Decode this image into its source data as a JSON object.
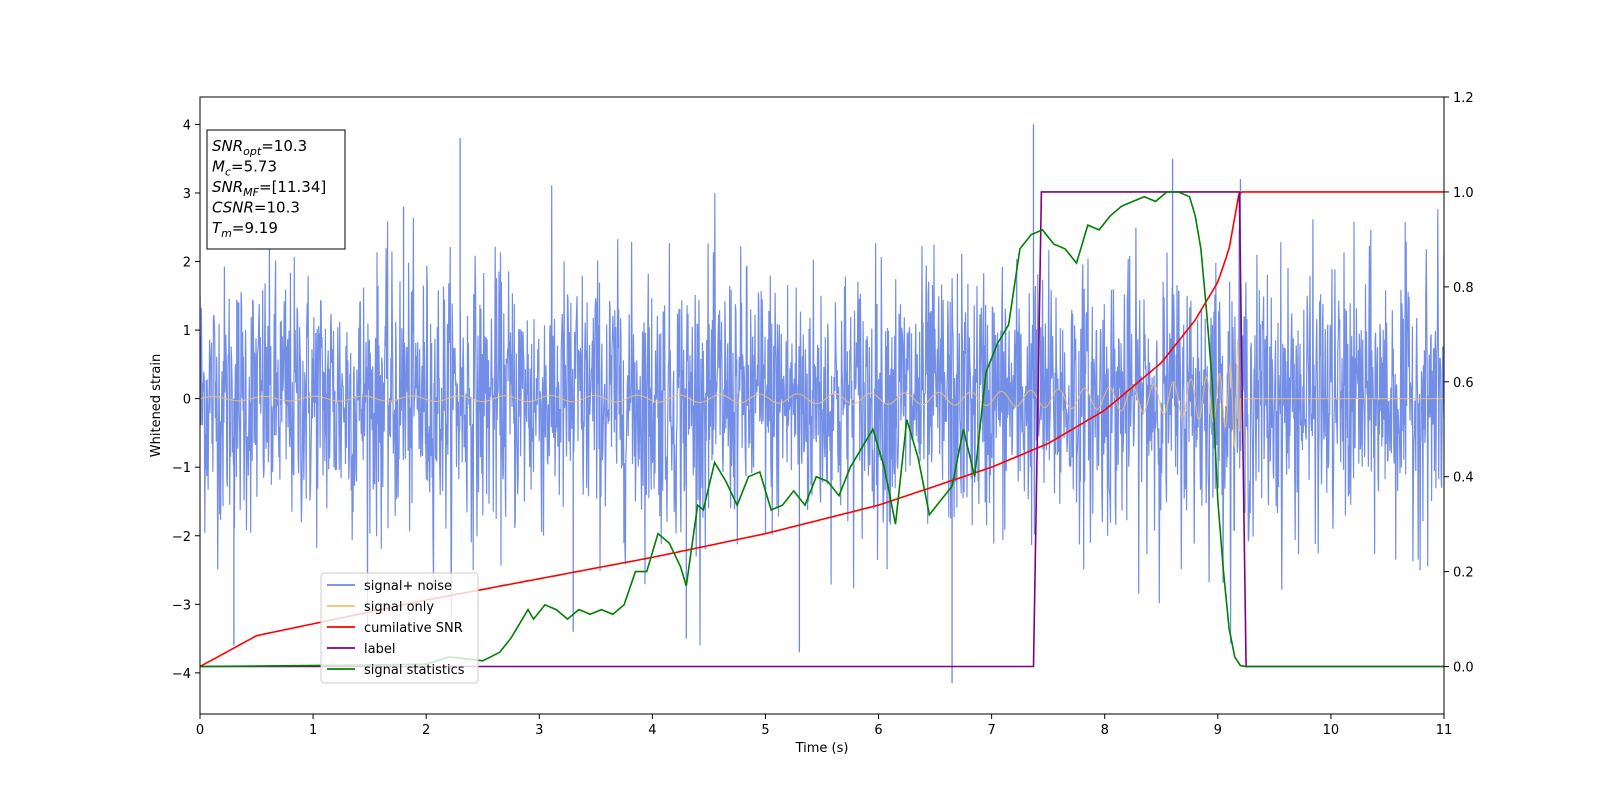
{
  "chart_data": {
    "type": "line",
    "xlabel": "Time (s)",
    "ylabel": "Whitened strain",
    "xlim": [
      0,
      11
    ],
    "ylim": [
      -4.6,
      4.4
    ],
    "y2lim": [
      -0.1,
      1.2
    ],
    "x_ticks": [
      "0",
      "1",
      "2",
      "3",
      "4",
      "5",
      "6",
      "7",
      "8",
      "9",
      "10",
      "11"
    ],
    "y_ticks": [
      "4",
      "3",
      "2",
      "1",
      "0",
      "−1",
      "−2",
      "−3",
      "−4"
    ],
    "y2_ticks": [
      "1.2",
      "1.0",
      "0.8",
      "0.6",
      "0.4",
      "0.2",
      "0.0"
    ],
    "grid": false,
    "legend_position": "lower-left",
    "annotation": [
      {
        "sym": "SNR",
        "sub": "opt",
        "val": "=10.3"
      },
      {
        "sym": "M",
        "sub": "c",
        "val": "=5.73"
      },
      {
        "sym": "SNR",
        "sub": "MF",
        "val": "=[11.34]"
      },
      {
        "sym": "CSNR",
        "sub": "",
        "val": "=10.3"
      },
      {
        "sym": "T",
        "sub": "m",
        "val": "=9.19"
      }
    ],
    "series": [
      {
        "name": "signal+ noise",
        "color": "#6b88e6",
        "axis": "left",
        "noise_envelope": {
          "typical_band": [
            -2.2,
            2.3
          ],
          "peak_max": 4.0,
          "peak_min": -4.15
        },
        "x": [
          0,
          0.3,
          1.8,
          2.3,
          3.3,
          4.3,
          5.3,
          6.65,
          7.37,
          8.6,
          9.2,
          11
        ],
        "y": [
          1.5,
          -3.6,
          2.8,
          3.8,
          -3.4,
          -3.5,
          -3.7,
          -4.15,
          4.0,
          3.5,
          3.2,
          2.1
        ]
      },
      {
        "name": "signal only",
        "color": "#f0c070",
        "axis": "left",
        "kind": "chirp",
        "x": [
          0,
          2,
          4,
          6,
          7,
          8,
          8.5,
          9,
          9.1,
          9.19,
          9.2,
          11
        ],
        "amplitude": [
          0.03,
          0.04,
          0.05,
          0.08,
          0.1,
          0.16,
          0.22,
          0.35,
          0.45,
          0.95,
          0.0,
          0.0
        ]
      },
      {
        "name": "cumilative SNR",
        "color": "#ff0000",
        "axis": "right",
        "x": [
          0,
          0.5,
          1,
          2,
          3,
          4,
          5,
          6,
          7,
          7.5,
          8,
          8.5,
          8.8,
          9.0,
          9.1,
          9.19,
          11
        ],
        "y": [
          0.0,
          0.065,
          0.09,
          0.14,
          0.185,
          0.23,
          0.28,
          0.34,
          0.42,
          0.47,
          0.54,
          0.64,
          0.73,
          0.81,
          0.88,
          1.0,
          1.0
        ]
      },
      {
        "name": "label",
        "color": "#800080",
        "axis": "right",
        "x": [
          0,
          7.37,
          7.44,
          9.19,
          9.25,
          11
        ],
        "y": [
          0.0,
          0.0,
          1.0,
          1.0,
          0.0,
          0.0
        ]
      },
      {
        "name": "signal statistics",
        "color": "#008000",
        "axis": "right",
        "x": [
          0,
          1,
          2,
          2.2,
          2.4,
          2.5,
          2.65,
          2.75,
          2.9,
          2.95,
          3.05,
          3.15,
          3.25,
          3.35,
          3.45,
          3.55,
          3.65,
          3.75,
          3.85,
          3.95,
          4.05,
          4.15,
          4.25,
          4.3,
          4.4,
          4.45,
          4.55,
          4.65,
          4.75,
          4.85,
          4.95,
          5.05,
          5.15,
          5.25,
          5.35,
          5.45,
          5.55,
          5.65,
          5.75,
          5.85,
          5.95,
          6.05,
          6.15,
          6.25,
          6.35,
          6.45,
          6.55,
          6.65,
          6.75,
          6.85,
          6.95,
          7.05,
          7.15,
          7.25,
          7.35,
          7.45,
          7.55,
          7.65,
          7.75,
          7.85,
          7.95,
          8.05,
          8.15,
          8.25,
          8.35,
          8.45,
          8.55,
          8.65,
          8.75,
          8.8,
          8.85,
          8.9,
          8.95,
          9.0,
          9.05,
          9.1,
          9.15,
          9.2,
          9.25,
          11
        ],
        "y": [
          0.0,
          0.002,
          0.005,
          0.02,
          0.015,
          0.012,
          0.03,
          0.06,
          0.12,
          0.1,
          0.13,
          0.12,
          0.1,
          0.12,
          0.11,
          0.12,
          0.11,
          0.13,
          0.2,
          0.2,
          0.28,
          0.26,
          0.21,
          0.17,
          0.34,
          0.33,
          0.43,
          0.39,
          0.34,
          0.4,
          0.41,
          0.33,
          0.34,
          0.37,
          0.34,
          0.4,
          0.39,
          0.36,
          0.42,
          0.46,
          0.5,
          0.42,
          0.3,
          0.52,
          0.44,
          0.32,
          0.35,
          0.38,
          0.5,
          0.4,
          0.62,
          0.68,
          0.72,
          0.88,
          0.91,
          0.92,
          0.89,
          0.88,
          0.85,
          0.93,
          0.92,
          0.95,
          0.97,
          0.98,
          0.99,
          0.98,
          1.0,
          1.0,
          0.99,
          0.95,
          0.88,
          0.75,
          0.6,
          0.35,
          0.2,
          0.08,
          0.02,
          0.002,
          0.0,
          0.0
        ]
      }
    ]
  }
}
